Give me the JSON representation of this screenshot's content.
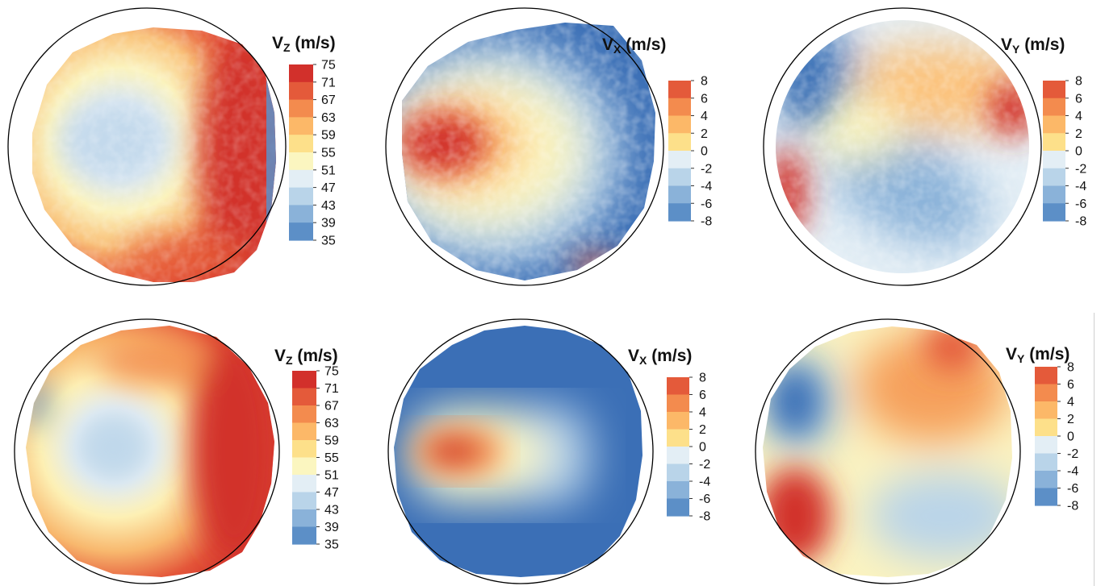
{
  "colors": {
    "scale": [
      "#3b6fb6",
      "#5c8fc7",
      "#8ab2d9",
      "#b9d4e9",
      "#e3eef5",
      "#fbf6c0",
      "#fde08a",
      "#fcb868",
      "#f38b4e",
      "#e45a3a",
      "#d2302b"
    ],
    "domain_edge": "#000000"
  },
  "chart_data": [
    {
      "type": "heatmap",
      "row": "top",
      "variable_main": "V",
      "variable_sub": "Z",
      "unit": "(m/s)",
      "ticks": [
        "75",
        "71",
        "67",
        "63",
        "59",
        "55",
        "51",
        "47",
        "43",
        "39",
        "35"
      ],
      "range": [
        35,
        75
      ]
    },
    {
      "type": "heatmap",
      "row": "top",
      "variable_main": "V",
      "variable_sub": "X",
      "unit": "(m/s)",
      "ticks": [
        "8",
        "6",
        "4",
        "2",
        "0",
        "-2",
        "-4",
        "-6",
        "-8"
      ],
      "range": [
        -8,
        8
      ]
    },
    {
      "type": "heatmap",
      "row": "top",
      "variable_main": "V",
      "variable_sub": "Y",
      "unit": "(m/s)",
      "ticks": [
        "8",
        "6",
        "4",
        "2",
        "0",
        "-2",
        "-4",
        "-6",
        "-8"
      ],
      "range": [
        -8,
        8
      ]
    },
    {
      "type": "heatmap",
      "row": "bottom",
      "variable_main": "V",
      "variable_sub": "Z",
      "unit": "(m/s)",
      "ticks": [
        "75",
        "71",
        "67",
        "63",
        "59",
        "55",
        "51",
        "47",
        "43",
        "39",
        "35"
      ],
      "range": [
        35,
        75
      ]
    },
    {
      "type": "heatmap",
      "row": "bottom",
      "variable_main": "V",
      "variable_sub": "X",
      "unit": "(m/s)",
      "ticks": [
        "8",
        "6",
        "4",
        "2",
        "0",
        "-2",
        "-4",
        "-6",
        "-8"
      ],
      "range": [
        -8,
        8
      ]
    },
    {
      "type": "heatmap",
      "row": "bottom",
      "variable_main": "V",
      "variable_sub": "Y",
      "unit": "(m/s)",
      "ticks": [
        "8",
        "6",
        "4",
        "2",
        "0",
        "-2",
        "-4",
        "-6",
        "-8"
      ],
      "range": [
        -8,
        8
      ]
    }
  ]
}
